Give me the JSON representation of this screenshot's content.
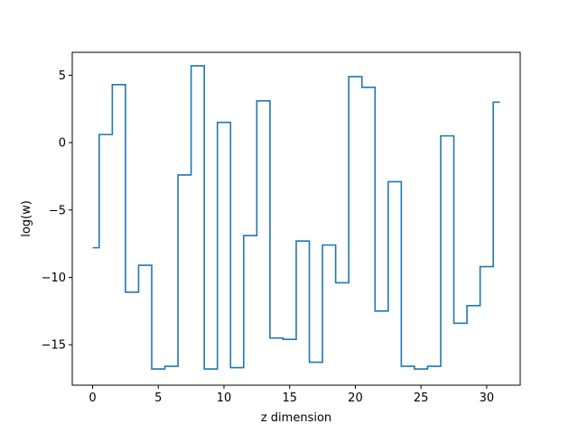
{
  "chart_data": {
    "type": "line",
    "drawstyle": "steps-mid",
    "title": "",
    "xlabel": "z dimension",
    "ylabel": "log(w)",
    "xlim": [
      -1.55,
      32.55
    ],
    "ylim": [
      -18.0,
      6.7
    ],
    "xticks": [
      0,
      5,
      10,
      15,
      20,
      25,
      30
    ],
    "xtick_labels": [
      "0",
      "5",
      "10",
      "15",
      "20",
      "25",
      "30"
    ],
    "yticks": [
      -15,
      -10,
      -5,
      0,
      5
    ],
    "ytick_labels": [
      "−15",
      "−10",
      "−5",
      "0",
      "5"
    ],
    "grid": false,
    "legend": "none",
    "line_color": "#1f77b4",
    "series": [
      {
        "x": [
          0,
          1,
          2,
          3,
          4,
          5,
          6,
          7,
          8,
          9,
          10,
          11,
          12,
          13,
          14,
          15,
          16,
          17,
          18,
          19,
          20,
          21,
          22,
          23,
          24,
          25,
          26,
          27,
          28,
          29,
          30,
          31
        ],
        "y": [
          -7.8,
          0.6,
          4.3,
          -11.1,
          -9.1,
          -16.8,
          -16.6,
          -2.4,
          5.7,
          -16.8,
          1.5,
          -16.7,
          -6.9,
          3.1,
          -14.5,
          -14.6,
          -7.3,
          -16.3,
          -7.6,
          -10.4,
          4.9,
          4.1,
          -12.5,
          -2.9,
          -16.6,
          -16.8,
          -16.6,
          0.5,
          -13.4,
          -12.1,
          -9.2,
          3.0
        ]
      }
    ]
  }
}
